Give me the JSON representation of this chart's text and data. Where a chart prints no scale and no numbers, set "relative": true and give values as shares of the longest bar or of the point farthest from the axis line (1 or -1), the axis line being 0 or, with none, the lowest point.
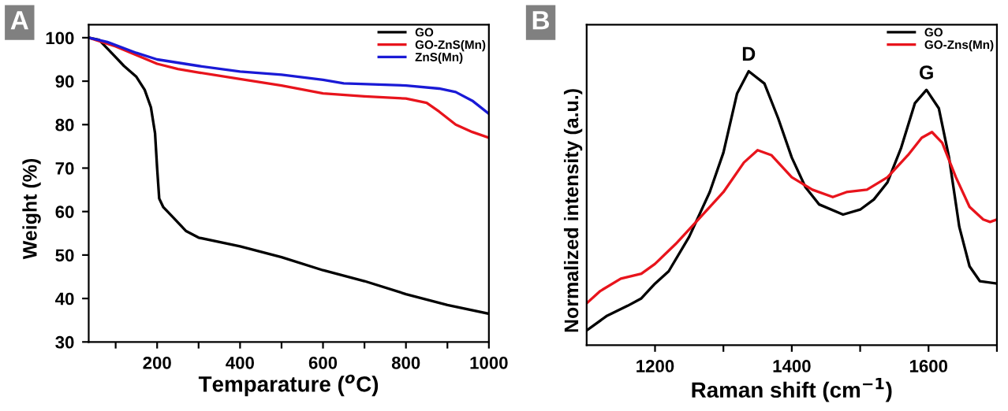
{
  "chart_data": [
    {
      "type": "line",
      "xlabel": "Temparature ($^{o}$C)",
      "ylabel": "Weight (%)",
      "annotations": [
        "A"
      ],
      "xlim": [
        35,
        1000
      ],
      "ylim": [
        30,
        103
      ],
      "xticks": [
        {
          "value": 100,
          "label": null
        },
        200,
        {
          "value": 300,
          "label": null
        },
        400,
        {
          "value": 500,
          "label": null
        },
        600,
        {
          "value": 700,
          "label": null
        },
        800,
        {
          "value": 900,
          "label": null
        },
        1000
      ],
      "yticks": [
        30,
        40,
        50,
        60,
        70,
        80,
        90,
        100
      ],
      "legend": "top right",
      "grid": false,
      "series": [
        {
          "name": "GO",
          "color": "#000000",
          "x": [
            35,
            60,
            80,
            100,
            120,
            150,
            170,
            185,
            195,
            200,
            205,
            215,
            240,
            270,
            300,
            400,
            500,
            600,
            700,
            800,
            900,
            1000
          ],
          "values": [
            100,
            99.5,
            97.5,
            95.5,
            93.5,
            91,
            88,
            84,
            78,
            70,
            63,
            61,
            58.5,
            55.5,
            54,
            52,
            49.5,
            46.5,
            44,
            41,
            38.5,
            36.5
          ]
        },
        {
          "name": "GO-ZnS(Mn)",
          "color": "#e8141c",
          "x": [
            35,
            100,
            150,
            200,
            250,
            300,
            400,
            500,
            600,
            700,
            800,
            850,
            880,
            920,
            960,
            1000
          ],
          "values": [
            100,
            98,
            96,
            94,
            92.8,
            92,
            90.5,
            89,
            87.2,
            86.5,
            86,
            85,
            83,
            80,
            78.3,
            77
          ]
        },
        {
          "name": "ZnS(Mn)",
          "color": "#1a1ad6",
          "x": [
            35,
            80,
            150,
            200,
            300,
            400,
            500,
            600,
            650,
            800,
            880,
            920,
            960,
            1000
          ],
          "values": [
            100,
            99,
            96.5,
            95,
            93.5,
            92.2,
            91.5,
            90.3,
            89.5,
            89,
            88.3,
            87.5,
            85.5,
            82.5
          ]
        }
      ]
    },
    {
      "type": "line",
      "xlabel": "Raman shift (cm$^{−1}$)",
      "ylabel": "Normalized intensity (a.u.)",
      "relative": true,
      "annotations": [
        "B",
        {
          "text": "D",
          "x": 1337,
          "y": 1.0
        },
        {
          "text": "G",
          "x": 1597,
          "y": 0.932
        }
      ],
      "xlim": [
        1100,
        1700
      ],
      "xticks": [
        1200,
        {
          "value": 1300,
          "label": null
        },
        1400,
        {
          "value": 1500,
          "label": null
        },
        1600,
        {
          "value": 1700,
          "label": null
        }
      ],
      "legend": "top right",
      "grid": false,
      "series": [
        {
          "name": "GO",
          "color": "#000000",
          "x": [
            1100,
            1130,
            1160,
            1180,
            1200,
            1220,
            1250,
            1280,
            1300,
            1320,
            1337,
            1360,
            1380,
            1400,
            1420,
            1440,
            1475,
            1500,
            1520,
            1540,
            1560,
            1580,
            1597,
            1615,
            1630,
            1645,
            1660,
            1675,
            1700
          ],
          "values": [
            0.054,
            0.108,
            0.144,
            0.171,
            0.225,
            0.27,
            0.396,
            0.559,
            0.703,
            0.919,
            1.0,
            0.955,
            0.829,
            0.685,
            0.577,
            0.514,
            0.477,
            0.495,
            0.532,
            0.595,
            0.721,
            0.883,
            0.932,
            0.865,
            0.685,
            0.432,
            0.288,
            0.234,
            0.225
          ]
        },
        {
          "name": "GO-Zns(Mn)",
          "color": "#e8141c",
          "x": [
            1100,
            1120,
            1150,
            1180,
            1200,
            1230,
            1260,
            1300,
            1330,
            1350,
            1370,
            1400,
            1430,
            1460,
            1480,
            1510,
            1540,
            1570,
            1590,
            1605,
            1620,
            1640,
            1660,
            1680,
            1690,
            1700
          ],
          "values": [
            0.153,
            0.198,
            0.243,
            0.261,
            0.297,
            0.369,
            0.45,
            0.559,
            0.667,
            0.712,
            0.694,
            0.613,
            0.568,
            0.541,
            0.559,
            0.568,
            0.613,
            0.694,
            0.757,
            0.778,
            0.739,
            0.613,
            0.505,
            0.459,
            0.45,
            0.459
          ]
        }
      ]
    }
  ]
}
